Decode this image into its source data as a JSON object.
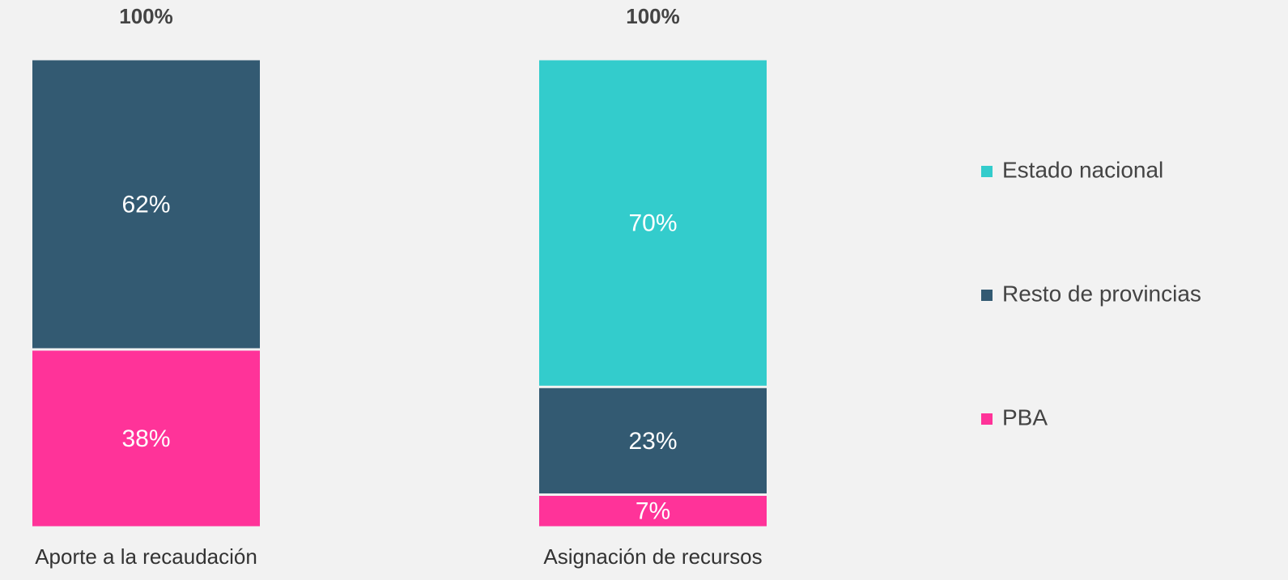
{
  "chart_data": {
    "type": "stacked_bar",
    "categories": [
      "Aporte a la recaudación",
      "Asignación de recursos"
    ],
    "totals": [
      100,
      100
    ],
    "total_labels": [
      "100%",
      "100%"
    ],
    "series": [
      {
        "name": "Estado nacional",
        "color": "#33cccc",
        "values": [
          null,
          70
        ],
        "value_labels": [
          null,
          "70%"
        ]
      },
      {
        "name": "Resto de provincias",
        "color": "#335a72",
        "values": [
          62,
          23
        ],
        "value_labels": [
          "62%",
          "23%"
        ]
      },
      {
        "name": "PBA",
        "color": "#ff3399",
        "values": [
          38,
          7
        ],
        "value_labels": [
          "38%",
          "7%"
        ]
      }
    ],
    "legend": "right"
  }
}
